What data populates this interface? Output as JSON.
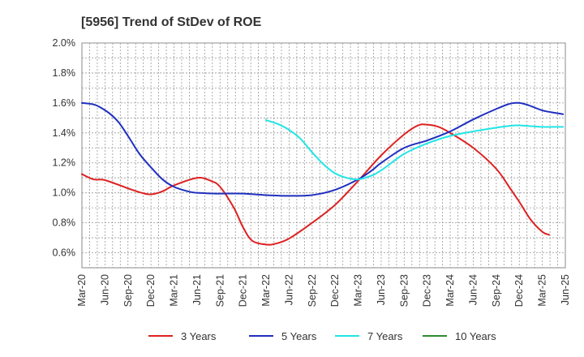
{
  "chart_data": {
    "type": "line",
    "title": "[5956]  Trend of StDev of ROE",
    "xlabel": "",
    "ylabel": "",
    "x_ticks": [
      "Mar-20",
      "Jun-20",
      "Sep-20",
      "Dec-20",
      "Mar-21",
      "Jun-21",
      "Sep-21",
      "Dec-21",
      "Mar-22",
      "Jun-22",
      "Sep-22",
      "Dec-22",
      "Mar-23",
      "Jun-23",
      "Sep-23",
      "Dec-23",
      "Mar-24",
      "Jun-24",
      "Sep-24",
      "Dec-24",
      "Mar-25",
      "Jun-25"
    ],
    "y_ticks": [
      "0.6%",
      "0.8%",
      "1.0%",
      "1.2%",
      "1.4%",
      "1.6%",
      "1.8%",
      "2.0%"
    ],
    "ylim": [
      0.5,
      2.0
    ],
    "grid": true,
    "legend_position": "bottom",
    "series": [
      {
        "name": "3 Years",
        "color": "#dd2222",
        "points": [
          [
            0,
            1.125
          ],
          [
            0.5,
            1.09
          ],
          [
            1,
            1.085
          ],
          [
            2,
            1.03
          ],
          [
            2.6,
            1.0
          ],
          [
            3,
            0.99
          ],
          [
            3.5,
            1.01
          ],
          [
            4,
            1.05
          ],
          [
            5,
            1.1
          ],
          [
            5.6,
            1.08
          ],
          [
            6,
            1.04
          ],
          [
            6.6,
            0.9
          ],
          [
            7,
            0.77
          ],
          [
            7.4,
            0.68
          ],
          [
            8,
            0.655
          ],
          [
            8.4,
            0.66
          ],
          [
            9,
            0.695
          ],
          [
            10,
            0.8
          ],
          [
            11,
            0.92
          ],
          [
            12,
            1.08
          ],
          [
            13,
            1.25
          ],
          [
            14,
            1.39
          ],
          [
            14.6,
            1.45
          ],
          [
            15,
            1.455
          ],
          [
            15.5,
            1.44
          ],
          [
            16,
            1.4
          ],
          [
            17,
            1.3
          ],
          [
            18,
            1.16
          ],
          [
            18.6,
            1.03
          ],
          [
            19,
            0.94
          ],
          [
            19.5,
            0.82
          ],
          [
            20,
            0.74
          ],
          [
            20.3,
            0.72
          ]
        ]
      },
      {
        "name": "5 Years",
        "color": "#1f2fbf",
        "points": [
          [
            0,
            1.6
          ],
          [
            0.5,
            1.59
          ],
          [
            0.8,
            1.57
          ],
          [
            1.2,
            1.53
          ],
          [
            1.6,
            1.47
          ],
          [
            2,
            1.38
          ],
          [
            2.5,
            1.26
          ],
          [
            3,
            1.17
          ],
          [
            3.5,
            1.09
          ],
          [
            4,
            1.04
          ],
          [
            4.6,
            1.01
          ],
          [
            5,
            1.0
          ],
          [
            6,
            0.995
          ],
          [
            7,
            0.995
          ],
          [
            8,
            0.985
          ],
          [
            9,
            0.98
          ],
          [
            10,
            0.985
          ],
          [
            11,
            1.02
          ],
          [
            12,
            1.09
          ],
          [
            12.6,
            1.15
          ],
          [
            13,
            1.2
          ],
          [
            14,
            1.3
          ],
          [
            15,
            1.35
          ],
          [
            16,
            1.41
          ],
          [
            17,
            1.49
          ],
          [
            18,
            1.56
          ],
          [
            18.6,
            1.595
          ],
          [
            19,
            1.6
          ],
          [
            19.4,
            1.585
          ],
          [
            20,
            1.55
          ],
          [
            20.5,
            1.535
          ],
          [
            20.9,
            1.525
          ]
        ]
      },
      {
        "name": "7 Years",
        "color": "#22e5e5",
        "points": [
          [
            8,
            1.485
          ],
          [
            8.5,
            1.46
          ],
          [
            9,
            1.42
          ],
          [
            9.5,
            1.36
          ],
          [
            10,
            1.27
          ],
          [
            10.5,
            1.19
          ],
          [
            11,
            1.13
          ],
          [
            11.5,
            1.1
          ],
          [
            12,
            1.09
          ],
          [
            12.5,
            1.11
          ],
          [
            13,
            1.15
          ],
          [
            14,
            1.26
          ],
          [
            15,
            1.33
          ],
          [
            16,
            1.38
          ],
          [
            17,
            1.41
          ],
          [
            18,
            1.435
          ],
          [
            18.8,
            1.45
          ],
          [
            19.5,
            1.445
          ],
          [
            20,
            1.44
          ],
          [
            20.5,
            1.44
          ],
          [
            20.9,
            1.44
          ]
        ]
      },
      {
        "name": "10 Years",
        "color": "#2e8b2e",
        "points": []
      }
    ]
  }
}
